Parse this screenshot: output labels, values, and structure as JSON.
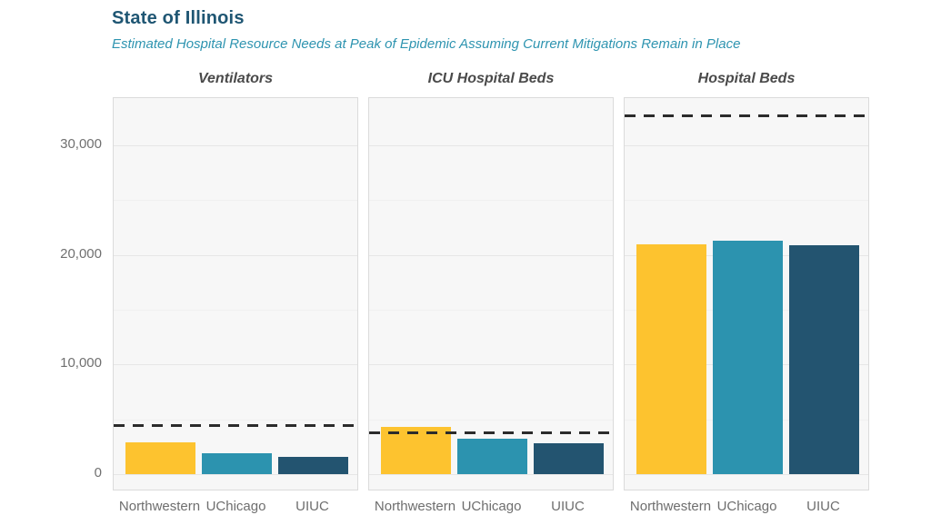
{
  "header": {
    "title": "State of Illinois",
    "subtitle": "Estimated Hospital Resource Needs at Peak of Epidemic Assuming Current Mitigations Remain in Place"
  },
  "colors": {
    "title_text": "#1F5673",
    "subtitle_text": "#2E94B0",
    "facet_title_text": "#4A4A4A",
    "axis_tick_text": "#707070",
    "x_label_text": "#6E6E6E",
    "panel_bg": "#F7F7F7",
    "panel_border": "#DBDBDB",
    "grid_major": "#E6E6E6",
    "grid_minor": "#F0F0F0",
    "capacity_line": "#2B2B2B",
    "bar_northwestern": "#FDC32F",
    "bar_uchicago": "#2C93AF",
    "bar_uiuc": "#235470"
  },
  "chart_data": {
    "type": "bar",
    "layout": "three faceted panels, shared y axis, dashed horizontal capacity line per panel",
    "categories": [
      "Northwestern",
      "UChicago",
      "UIUC"
    ],
    "panels": [
      {
        "title": "Ventilators",
        "values": [
          2900,
          1900,
          1600
        ],
        "capacity": 4450
      },
      {
        "title": "ICU Hospital Beds",
        "values": [
          4300,
          3200,
          2800
        ],
        "capacity": 3750
      },
      {
        "title": "Hospital Beds",
        "values": [
          21000,
          21300,
          20900
        ],
        "capacity": 32700
      }
    ],
    "ylabel": "",
    "xlabel": "",
    "ylim": [
      0,
      34300
    ],
    "yticks": [
      0,
      10000,
      20000,
      30000
    ],
    "ytick_labels": [
      "0",
      "10,000",
      "20,000",
      "30,000"
    ],
    "minor_ticks": [
      5000,
      15000,
      25000
    ],
    "grid": "horizontal major + faint minor",
    "legend": "none",
    "capacity_line_style": "dashed"
  }
}
